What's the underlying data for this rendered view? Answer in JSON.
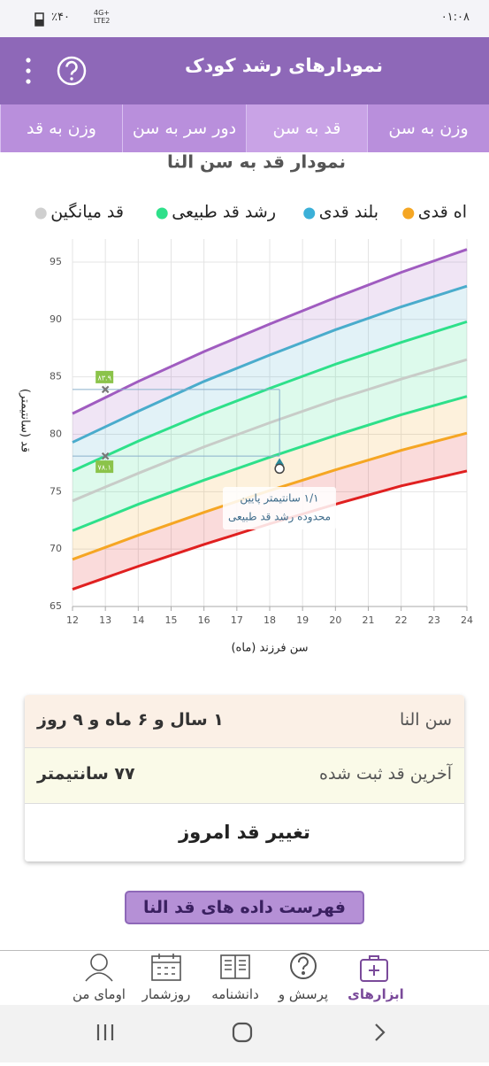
{
  "status_bar": {
    "time": "۰۱:۰۸",
    "battery": "٪۴۰",
    "network": [
      "4G+",
      "LTE2"
    ]
  },
  "header": {
    "title": "نمودارهای رشد کودک"
  },
  "tabs": {
    "items": [
      "وزن به سن",
      "قد به سن",
      "دور سر به سن",
      "وزن به قد"
    ],
    "active": 1
  },
  "chart_data": {
    "type": "line",
    "title": "نمودار قد به سن النا",
    "legend": [
      {
        "label": "اه قدی",
        "color": "#f5a623"
      },
      {
        "label": "بلند قدی",
        "color": "#3bb0d8"
      },
      {
        "label": "رشد قد طبیعی",
        "color": "#2ee08a"
      },
      {
        "label": "قد میانگین",
        "color": "#cfcfcf"
      }
    ],
    "x_label": "سن فرزند (ماه)",
    "y_label": "قد (سانتیمتر)",
    "x": [
      12,
      14,
      16,
      18,
      20,
      22,
      24
    ],
    "series": [
      {
        "color": "#a05cc0",
        "values": [
          81.8,
          84.6,
          87.2,
          89.6,
          91.9,
          94.1,
          96.1
        ]
      },
      {
        "color": "#4aaccc",
        "values": [
          79.3,
          82.0,
          84.6,
          86.9,
          89.1,
          91.1,
          92.9
        ]
      },
      {
        "color": "#2ee08a",
        "values": [
          76.8,
          79.4,
          81.8,
          84.0,
          86.1,
          88.0,
          89.8
        ]
      },
      {
        "color": "#c8ccc8",
        "values": [
          74.2,
          76.6,
          78.9,
          81.0,
          83.0,
          84.8,
          86.5
        ]
      },
      {
        "color": "#2ee08a",
        "values": [
          71.6,
          73.9,
          76.0,
          78.0,
          79.9,
          81.7,
          83.3
        ]
      },
      {
        "color": "#f5a623",
        "values": [
          69.1,
          71.2,
          73.2,
          75.1,
          76.9,
          78.6,
          80.1
        ]
      },
      {
        "color": "#e02020",
        "values": [
          66.5,
          68.5,
          70.4,
          72.2,
          73.9,
          75.5,
          76.8
        ]
      }
    ],
    "markers": [
      {
        "x": 13,
        "value": 83.9,
        "label": "۸۳.۹"
      },
      {
        "x": 13,
        "value": 78.1,
        "label": "۷۸.۱"
      }
    ],
    "point": {
      "x": 18.3,
      "value": 77
    },
    "annotation": [
      "۱/۱ سانتیمتر پایین",
      "محدوده رشد قد طبیعی"
    ],
    "xlim": [
      12,
      24
    ],
    "ylim": [
      65,
      97
    ],
    "xticks": [
      12,
      13,
      14,
      15,
      16,
      17,
      18,
      19,
      20,
      21,
      22,
      23,
      24
    ],
    "yticks": [
      65,
      70,
      75,
      80,
      85,
      90,
      95
    ],
    "grid": true
  },
  "info": {
    "rows": [
      {
        "label": "سن النا",
        "value": "۱ سال و ۶ ماه و ۹ روز"
      },
      {
        "label": "آخرین قد ثبت شده",
        "value": "۷۷ سانتیمتر"
      }
    ],
    "action": "تغییر قد امروز"
  },
  "list_button": "فهرست داده های قد النا",
  "nav": [
    "ابزارهای",
    "پرسش و",
    "دانشنامه",
    "روزشمار",
    "اومای من"
  ]
}
